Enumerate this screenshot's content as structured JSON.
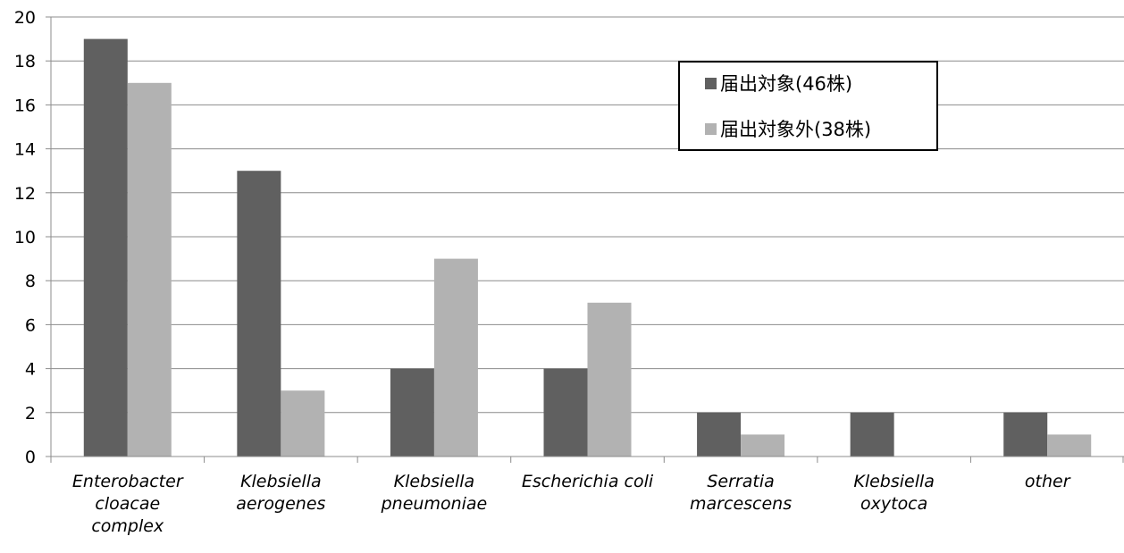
{
  "chart_data": {
    "type": "bar",
    "title": "",
    "xlabel": "",
    "ylabel": "",
    "ylim": [
      0,
      20
    ],
    "yticks": [
      0,
      2,
      4,
      6,
      8,
      10,
      12,
      14,
      16,
      18,
      20
    ],
    "grid": true,
    "legend_position": "top-right",
    "categories": [
      [
        "Enterobacter",
        "cloacae",
        "complex"
      ],
      [
        "Klebsiella",
        "aerogenes"
      ],
      [
        "Klebsiella",
        "pneumoniae"
      ],
      [
        "Escherichia coli"
      ],
      [
        "Serratia",
        "marcescens"
      ],
      [
        "Klebsiella",
        "oxytoca"
      ],
      [
        "other"
      ]
    ],
    "series": [
      {
        "name": "届出対象(46株)",
        "color": "#606060",
        "values": [
          19,
          13,
          4,
          4,
          2,
          2,
          2
        ]
      },
      {
        "name": "届出対象外(38株)",
        "color": "#b2b2b2",
        "values": [
          17,
          3,
          9,
          7,
          1,
          0,
          1
        ]
      }
    ]
  }
}
